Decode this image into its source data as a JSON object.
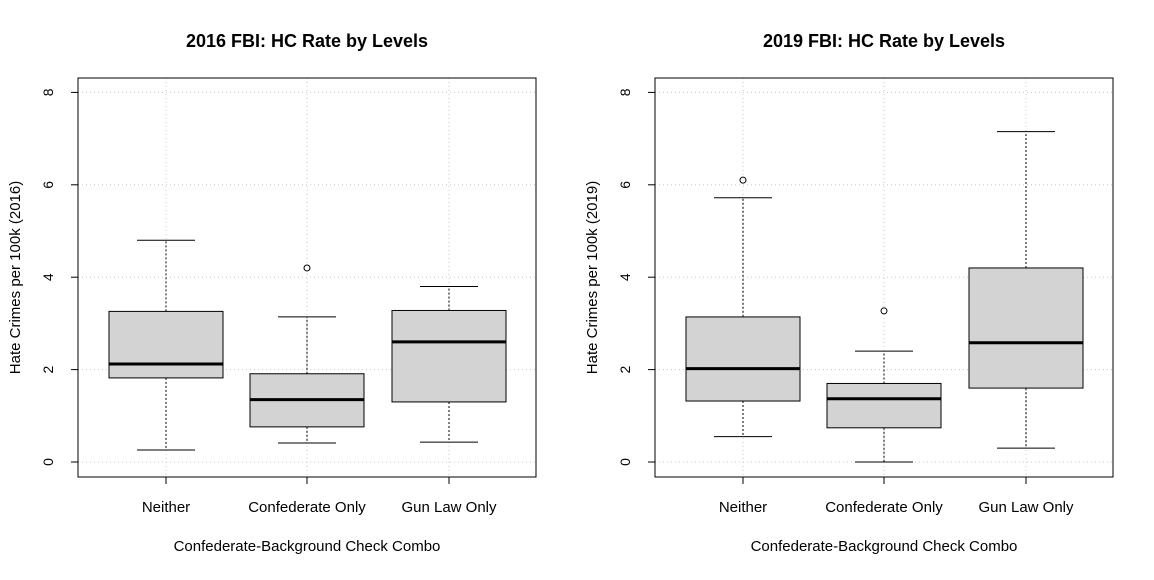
{
  "chart_data": [
    {
      "type": "boxplot",
      "title": "2016 FBI: HC Rate by Levels",
      "xlabel": "Confederate-Background Check Combo",
      "ylabel": "Hate Crimes per 100k (2016)",
      "categories": [
        "Neither",
        "Confederate Only",
        "Gun Law Only"
      ],
      "yticks": [
        "0",
        "2",
        "4",
        "6",
        "8"
      ],
      "ylim": [
        0,
        8
      ],
      "grid": true,
      "boxes": [
        {
          "whisker_low": 0.26,
          "q1": 1.82,
          "median": 2.12,
          "q3": 3.26,
          "whisker_high": 4.8,
          "outliers": []
        },
        {
          "whisker_low": 0.41,
          "q1": 0.76,
          "median": 1.35,
          "q3": 1.91,
          "whisker_high": 3.14,
          "outliers": [
            4.2
          ]
        },
        {
          "whisker_low": 0.43,
          "q1": 1.3,
          "median": 2.6,
          "q3": 3.28,
          "whisker_high": 3.8,
          "outliers": []
        }
      ]
    },
    {
      "type": "boxplot",
      "title": "2019 FBI: HC Rate by Levels",
      "xlabel": "Confederate-Background Check Combo",
      "ylabel": "Hate Crimes per 100k (2019)",
      "categories": [
        "Neither",
        "Confederate Only",
        "Gun Law Only"
      ],
      "yticks": [
        "0",
        "2",
        "4",
        "6",
        "8"
      ],
      "ylim": [
        0,
        8
      ],
      "grid": true,
      "boxes": [
        {
          "whisker_low": 0.55,
          "q1": 1.32,
          "median": 2.02,
          "q3": 3.14,
          "whisker_high": 5.72,
          "outliers": [
            6.1
          ]
        },
        {
          "whisker_low": 0.0,
          "q1": 0.74,
          "median": 1.37,
          "q3": 1.7,
          "whisker_high": 2.4,
          "outliers": [
            3.27
          ]
        },
        {
          "whisker_low": 0.3,
          "q1": 1.6,
          "median": 2.58,
          "q3": 4.2,
          "whisker_high": 7.15,
          "outliers": []
        }
      ]
    }
  ]
}
